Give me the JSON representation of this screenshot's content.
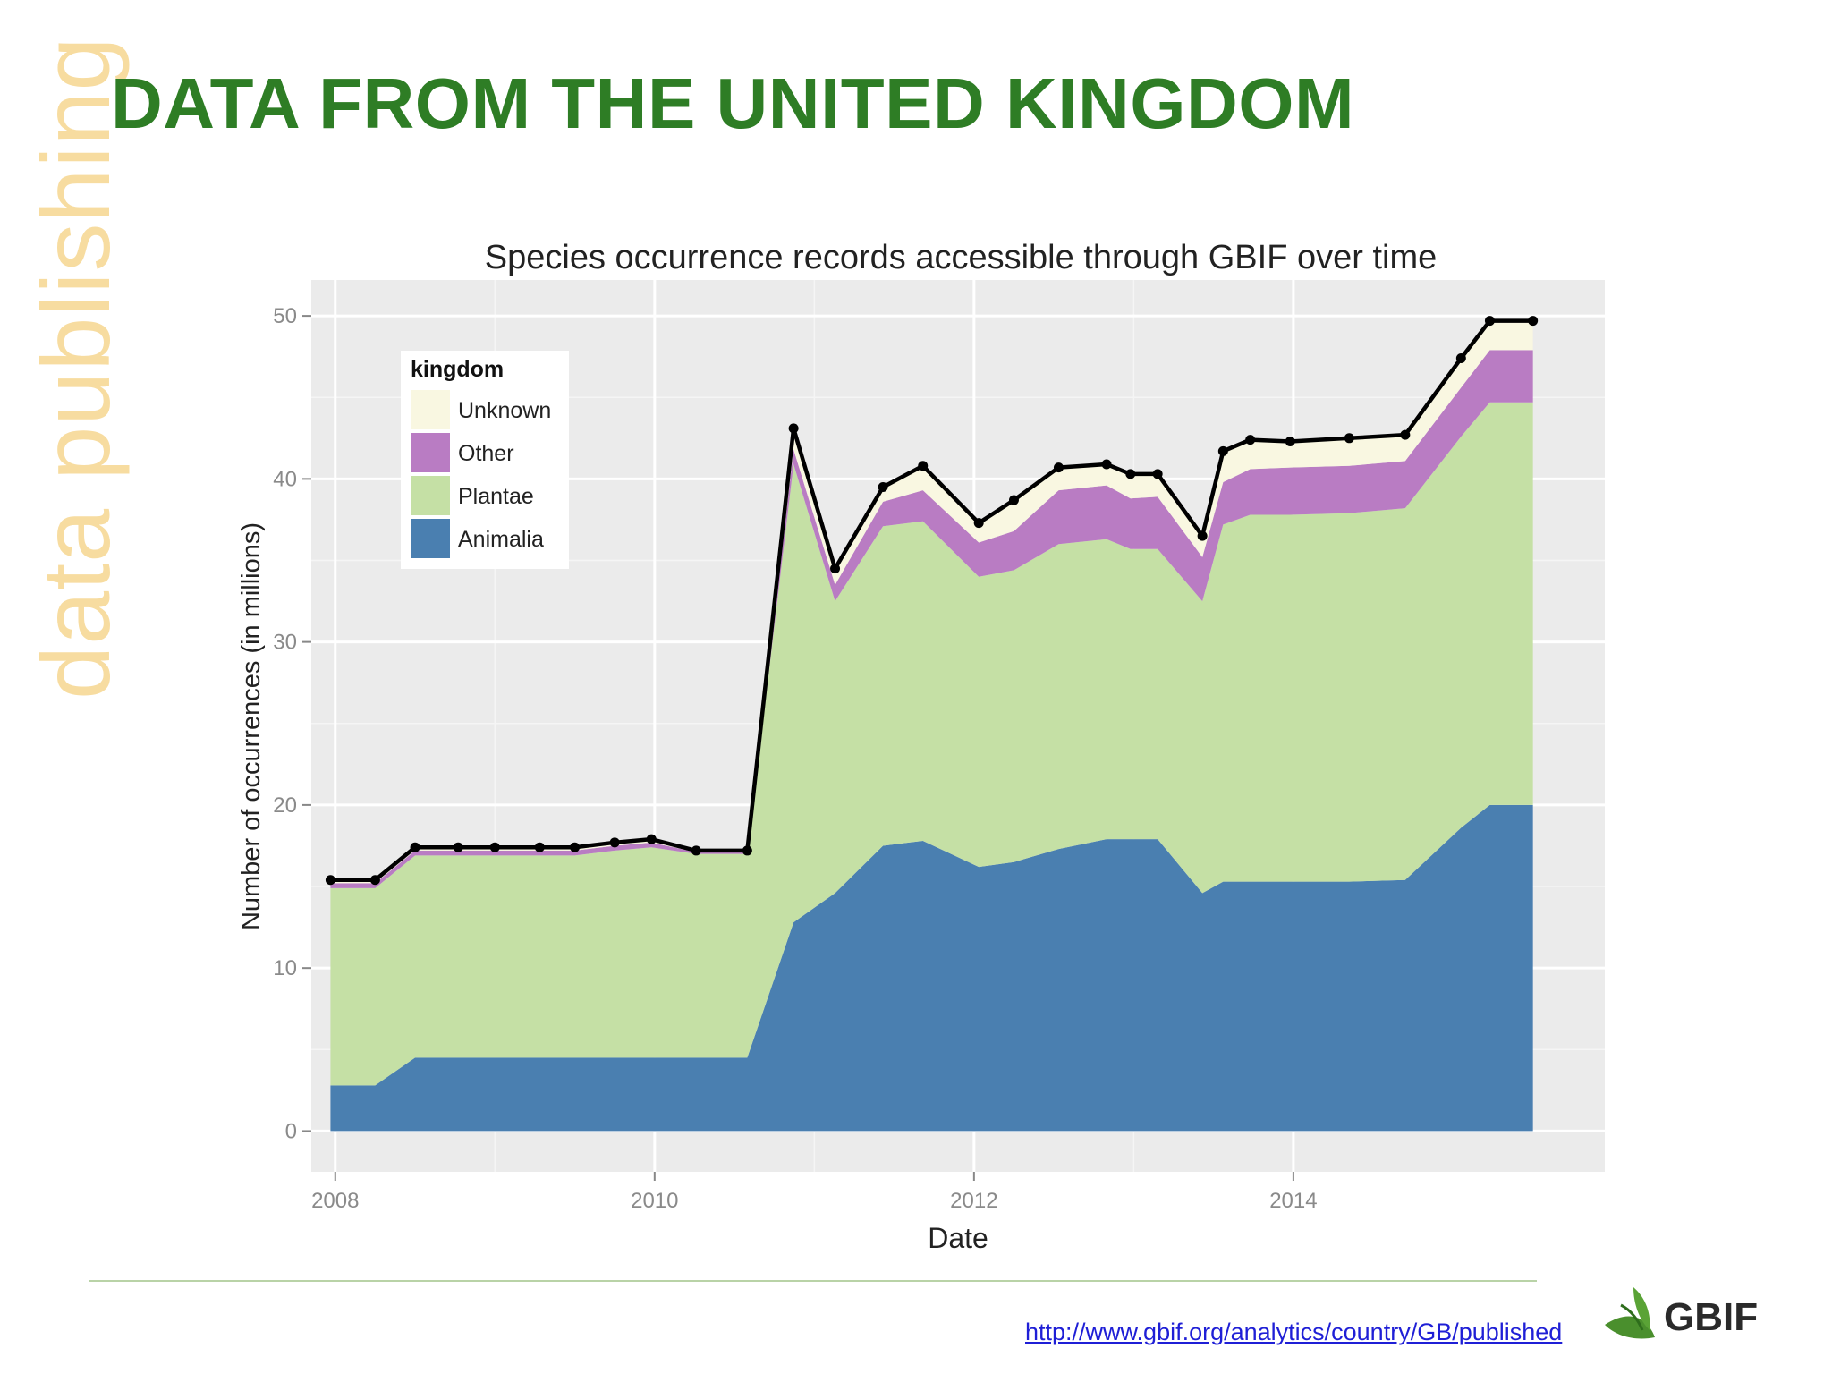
{
  "side_title": "data publishing",
  "slide_title": "DATA FROM THE UNITED KINGDOM",
  "source_link": "http://www.gbif.org/analytics/country/GB/published",
  "logo": {
    "text": "GBIF",
    "icon": "leaf-icon"
  },
  "colors": {
    "title": "#2e7d25",
    "side_title": "#f7dca0",
    "panel_bg": "#ebebeb",
    "animalia": "#4a7fb0",
    "plantae": "#c5e0a5",
    "other": "#b97cc3",
    "unknown": "#f9f7e1",
    "total_line": "#000000"
  },
  "chart_data": {
    "type": "area",
    "stacked": true,
    "title": "Species occurrence records accessible through GBIF over time",
    "xlabel": "Date",
    "ylabel": "Number of occurrences (in millions)",
    "xlim": [
      2007.85,
      2015.95
    ],
    "ylim": [
      -2.5,
      52.2
    ],
    "x_ticks": [
      2008,
      2010,
      2012,
      2014
    ],
    "x_tick_labels": [
      "2008",
      "2010",
      "2012",
      "2014"
    ],
    "y_ticks": [
      0,
      10,
      20,
      30,
      40,
      50
    ],
    "y_tick_labels": [
      "0",
      "10",
      "20",
      "30",
      "40",
      "50"
    ],
    "grid": true,
    "legend": {
      "title": "kingdom",
      "position": "top-left",
      "entries": [
        "Unknown",
        "Other",
        "Plantae",
        "Animalia"
      ]
    },
    "x": [
      2007.97,
      2008.25,
      2008.5,
      2008.77,
      2009.0,
      2009.28,
      2009.5,
      2009.75,
      2009.98,
      2010.26,
      2010.58,
      2010.87,
      2011.13,
      2011.43,
      2011.68,
      2012.03,
      2012.25,
      2012.53,
      2012.83,
      2012.98,
      2013.15,
      2013.43,
      2013.56,
      2013.73,
      2013.98,
      2014.35,
      2014.7,
      2015.05,
      2015.23,
      2015.5
    ],
    "series": [
      {
        "name": "Animalia",
        "values": [
          2.8,
          2.8,
          4.5,
          4.5,
          4.5,
          4.5,
          4.5,
          4.5,
          4.5,
          4.5,
          4.5,
          12.8,
          14.6,
          17.5,
          17.8,
          16.2,
          16.5,
          17.3,
          17.9,
          17.9,
          17.9,
          14.6,
          15.3,
          15.3,
          15.3,
          15.3,
          15.4,
          18.6,
          20.0,
          20.0
        ]
      },
      {
        "name": "Plantae",
        "values": [
          12.1,
          12.1,
          12.4,
          12.4,
          12.4,
          12.4,
          12.4,
          12.7,
          12.9,
          12.5,
          12.5,
          28.1,
          17.9,
          19.6,
          19.6,
          17.8,
          17.9,
          18.7,
          18.4,
          17.8,
          17.8,
          17.9,
          21.9,
          22.5,
          22.5,
          22.6,
          22.8,
          24.0,
          24.7,
          24.7
        ]
      },
      {
        "name": "Other",
        "values": [
          0.3,
          0.3,
          0.3,
          0.3,
          0.3,
          0.3,
          0.3,
          0.3,
          0.3,
          0.1,
          0.1,
          0.9,
          1.0,
          1.5,
          1.9,
          2.1,
          2.4,
          3.3,
          3.3,
          3.1,
          3.2,
          2.7,
          2.6,
          2.8,
          2.9,
          2.9,
          2.9,
          3.0,
          3.2,
          3.2
        ]
      },
      {
        "name": "Unknown",
        "values": [
          0.2,
          0.2,
          0.2,
          0.2,
          0.2,
          0.2,
          0.2,
          0.2,
          0.2,
          0.1,
          0.1,
          1.3,
          1.0,
          0.9,
          1.5,
          1.2,
          1.9,
          1.4,
          1.3,
          1.5,
          1.4,
          1.3,
          1.9,
          1.8,
          1.6,
          1.7,
          1.6,
          1.8,
          1.8,
          1.8
        ]
      }
    ],
    "total": [
      15.4,
      15.4,
      17.4,
      17.4,
      17.4,
      17.4,
      17.4,
      17.7,
      17.9,
      17.2,
      17.2,
      43.1,
      34.5,
      39.5,
      40.8,
      37.3,
      38.7,
      40.7,
      40.9,
      40.3,
      40.3,
      36.5,
      41.7,
      42.4,
      42.3,
      42.5,
      42.7,
      47.4,
      49.7,
      49.7
    ]
  }
}
